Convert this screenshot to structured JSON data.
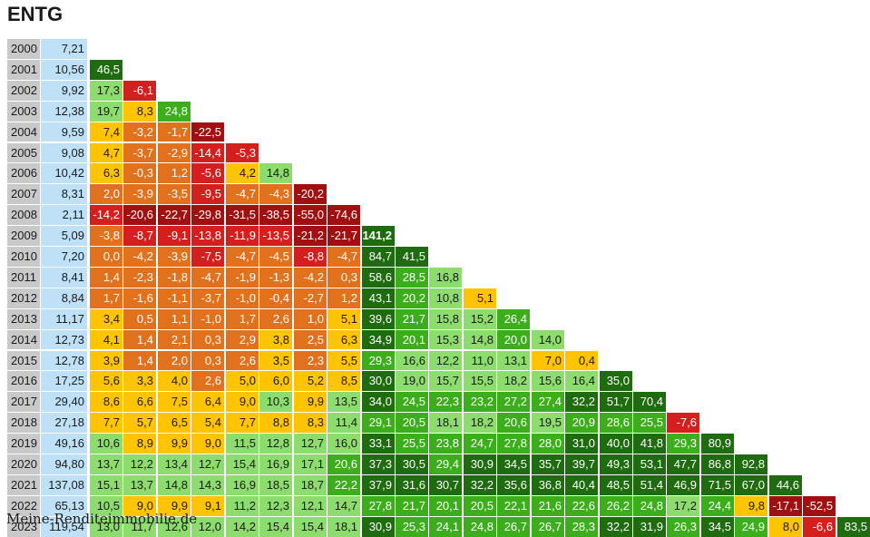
{
  "title": "ENTG",
  "credit": "Meine-Renditeimmobilie.de",
  "colors": {
    "dark_green": "#1f6b0f",
    "green": "#3cae1c",
    "light_green": "#8ddc6e",
    "yellow": "#ffc400",
    "orange": "#e2711d",
    "red": "#d41f1f",
    "dark_red": "#a11010",
    "year_bg": "#c9c9c9",
    "price_bg": "#bfe1f7"
  },
  "chart_data": {
    "type": "table",
    "description_rows": "Each row: year, year-end price, then annualized return (%) from each earlier start year to this row's year",
    "rows": [
      {
        "year": "2000",
        "price": "7,21",
        "returns": []
      },
      {
        "year": "2001",
        "price": "10,56",
        "returns": [
          "46,5"
        ]
      },
      {
        "year": "2002",
        "price": "9,92",
        "returns": [
          "17,3",
          "-6,1"
        ]
      },
      {
        "year": "2003",
        "price": "12,38",
        "returns": [
          "19,7",
          "8,3",
          "24,8"
        ]
      },
      {
        "year": "2004",
        "price": "9,59",
        "returns": [
          "7,4",
          "-3,2",
          "-1,7",
          "-22,5"
        ]
      },
      {
        "year": "2005",
        "price": "9,08",
        "returns": [
          "4,7",
          "-3,7",
          "-2,9",
          "-14,4",
          "-5,3"
        ]
      },
      {
        "year": "2006",
        "price": "10,42",
        "returns": [
          "6,3",
          "-0,3",
          "1,2",
          "-5,6",
          "4,2",
          "14,8"
        ]
      },
      {
        "year": "2007",
        "price": "8,31",
        "returns": [
          "2,0",
          "-3,9",
          "-3,5",
          "-9,5",
          "-4,7",
          "-4,3",
          "-20,2"
        ]
      },
      {
        "year": "2008",
        "price": "2,11",
        "returns": [
          "-14,2",
          "-20,6",
          "-22,7",
          "-29,8",
          "-31,5",
          "-38,5",
          "-55,0",
          "-74,6"
        ]
      },
      {
        "year": "2009",
        "price": "5,09",
        "returns": [
          "-3,8",
          "-8,7",
          "-9,1",
          "-13,8",
          "-11,9",
          "-13,5",
          "-21,2",
          "-21,7",
          "141,2"
        ]
      },
      {
        "year": "2010",
        "price": "7,20",
        "returns": [
          "0,0",
          "-4,2",
          "-3,9",
          "-7,5",
          "-4,7",
          "-4,5",
          "-8,8",
          "-4,7",
          "84,7",
          "41,5"
        ]
      },
      {
        "year": "2011",
        "price": "8,41",
        "returns": [
          "1,4",
          "-2,3",
          "-1,8",
          "-4,7",
          "-1,9",
          "-1,3",
          "-4,2",
          "0,3",
          "58,6",
          "28,5",
          "16,8"
        ]
      },
      {
        "year": "2012",
        "price": "8,84",
        "returns": [
          "1,7",
          "-1,6",
          "-1,1",
          "-3,7",
          "-1,0",
          "-0,4",
          "-2,7",
          "1,2",
          "43,1",
          "20,2",
          "10,8",
          "5,1"
        ]
      },
      {
        "year": "2013",
        "price": "11,17",
        "returns": [
          "3,4",
          "0,5",
          "1,1",
          "-1,0",
          "1,7",
          "2,6",
          "1,0",
          "5,1",
          "39,6",
          "21,7",
          "15,8",
          "15,2",
          "26,4"
        ]
      },
      {
        "year": "2014",
        "price": "12,73",
        "returns": [
          "4,1",
          "1,4",
          "2,1",
          "0,3",
          "2,9",
          "3,8",
          "2,5",
          "6,3",
          "34,9",
          "20,1",
          "15,3",
          "14,8",
          "20,0",
          "14,0"
        ]
      },
      {
        "year": "2015",
        "price": "12,78",
        "returns": [
          "3,9",
          "1,4",
          "2,0",
          "0,3",
          "2,6",
          "3,5",
          "2,3",
          "5,5",
          "29,3",
          "16,6",
          "12,2",
          "11,0",
          "13,1",
          "7,0",
          "0,4"
        ]
      },
      {
        "year": "2016",
        "price": "17,25",
        "returns": [
          "5,6",
          "3,3",
          "4,0",
          "2,6",
          "5,0",
          "6,0",
          "5,2",
          "8,5",
          "30,0",
          "19,0",
          "15,7",
          "15,5",
          "18,2",
          "15,6",
          "16,4",
          "35,0"
        ]
      },
      {
        "year": "2017",
        "price": "29,40",
        "returns": [
          "8,6",
          "6,6",
          "7,5",
          "6,4",
          "9,0",
          "10,3",
          "9,9",
          "13,5",
          "34,0",
          "24,5",
          "22,3",
          "23,2",
          "27,2",
          "27,4",
          "32,2",
          "51,7",
          "70,4"
        ]
      },
      {
        "year": "2018",
        "price": "27,18",
        "returns": [
          "7,7",
          "5,7",
          "6,5",
          "5,4",
          "7,7",
          "8,8",
          "8,3",
          "11,4",
          "29,1",
          "20,5",
          "18,1",
          "18,2",
          "20,6",
          "19,5",
          "20,9",
          "28,6",
          "25,5",
          "-7,6"
        ]
      },
      {
        "year": "2019",
        "price": "49,16",
        "returns": [
          "10,6",
          "8,9",
          "9,9",
          "9,0",
          "11,5",
          "12,8",
          "12,7",
          "16,0",
          "33,1",
          "25,5",
          "23,8",
          "24,7",
          "27,8",
          "28,0",
          "31,0",
          "40,0",
          "41,8",
          "29,3",
          "80,9"
        ]
      },
      {
        "year": "2020",
        "price": "94,80",
        "returns": [
          "13,7",
          "12,2",
          "13,4",
          "12,7",
          "15,4",
          "16,9",
          "17,1",
          "20,6",
          "37,3",
          "30,5",
          "29,4",
          "30,9",
          "34,5",
          "35,7",
          "39,7",
          "49,3",
          "53,1",
          "47,7",
          "86,8",
          "92,8"
        ]
      },
      {
        "year": "2021",
        "price": "137,08",
        "returns": [
          "15,1",
          "13,7",
          "14,8",
          "14,3",
          "16,9",
          "18,5",
          "18,7",
          "22,2",
          "37,9",
          "31,6",
          "30,7",
          "32,2",
          "35,6",
          "36,8",
          "40,4",
          "48,5",
          "51,4",
          "46,9",
          "71,5",
          "67,0",
          "44,6"
        ]
      },
      {
        "year": "2022",
        "price": "65,13",
        "returns": [
          "10,5",
          "9,0",
          "9,9",
          "9,1",
          "11,2",
          "12,3",
          "12,1",
          "14,7",
          "27,8",
          "21,7",
          "20,1",
          "20,5",
          "22,1",
          "21,6",
          "22,6",
          "26,2",
          "24,8",
          "17,2",
          "24,4",
          "9,8",
          "-17,1",
          "-52,5"
        ]
      },
      {
        "year": "2023",
        "price": "119,54",
        "returns": [
          "13,0",
          "11,7",
          "12,6",
          "12,0",
          "14,2",
          "15,4",
          "15,4",
          "18,1",
          "30,9",
          "25,3",
          "24,1",
          "24,8",
          "26,7",
          "26,7",
          "28,3",
          "32,2",
          "31,9",
          "26,3",
          "34,5",
          "24,9",
          "8,0",
          "-6,6",
          "83,5"
        ]
      }
    ]
  }
}
